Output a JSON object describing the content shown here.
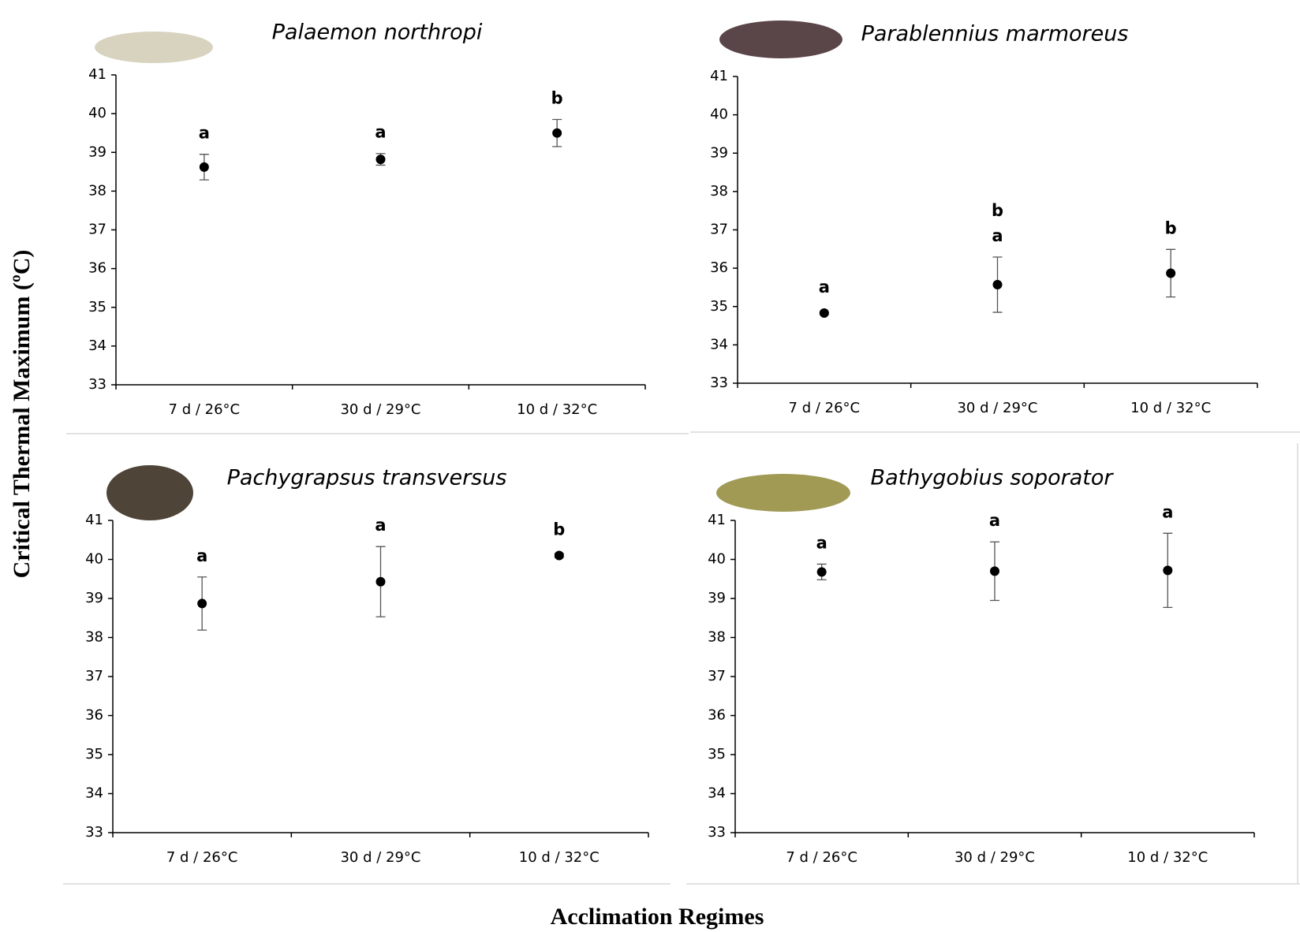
{
  "ylabel": "Critical Thermal Maximum (ºC)",
  "xlabel": "Acclimation Regimes",
  "chart_data": [
    {
      "type": "scatter",
      "title": "Palaemon northropi",
      "categories": [
        "7 d / 26°C",
        "30 d / 29°C",
        "10 d / 32°C"
      ],
      "values": [
        38.62,
        38.82,
        39.5
      ],
      "errors": [
        0.33,
        0.15,
        0.35
      ],
      "letters": [
        [
          "a"
        ],
        [
          "a"
        ],
        [
          "b"
        ]
      ],
      "color": "#000000",
      "ylim": [
        33,
        41
      ],
      "yticks": [
        33,
        34,
        35,
        36,
        37,
        38,
        39,
        40,
        41
      ]
    },
    {
      "type": "scatter",
      "title": "Parablennius marmoreus",
      "categories": [
        "7 d / 26°C",
        "30 d / 29°C",
        "10 d / 32°C"
      ],
      "values": [
        34.83,
        35.57,
        35.87
      ],
      "errors": [
        0.03,
        0.72,
        0.62
      ],
      "letters": [
        [
          "a"
        ],
        [
          "b",
          "a"
        ],
        [
          "b"
        ]
      ],
      "color": "#000000",
      "ylim": [
        33,
        41
      ],
      "yticks": [
        33,
        34,
        35,
        36,
        37,
        38,
        39,
        40,
        41
      ]
    },
    {
      "type": "scatter",
      "title": "Pachygrapsus transversus",
      "categories": [
        "7 d / 26°C",
        "30 d / 29°C",
        "10 d / 32°C"
      ],
      "values": [
        38.87,
        39.43,
        40.1
      ],
      "errors": [
        0.68,
        0.9,
        0.05
      ],
      "letters": [
        [
          "a"
        ],
        [
          "a"
        ],
        [
          "b"
        ]
      ],
      "color": "#000000",
      "ylim": [
        33,
        41
      ],
      "yticks": [
        33,
        34,
        35,
        36,
        37,
        38,
        39,
        40,
        41
      ]
    },
    {
      "type": "scatter",
      "title": "Bathygobius soporator",
      "categories": [
        "7 d / 26°C",
        "30 d / 29°C",
        "10 d / 32°C"
      ],
      "values": [
        39.68,
        39.7,
        39.72
      ],
      "errors": [
        0.2,
        0.75,
        0.95
      ],
      "letters": [
        [
          "a"
        ],
        [
          "a"
        ],
        [
          "a"
        ]
      ],
      "color": "#000000",
      "ylim": [
        33,
        41
      ],
      "yticks": [
        33,
        34,
        35,
        36,
        37,
        38,
        39,
        40,
        41
      ]
    }
  ]
}
